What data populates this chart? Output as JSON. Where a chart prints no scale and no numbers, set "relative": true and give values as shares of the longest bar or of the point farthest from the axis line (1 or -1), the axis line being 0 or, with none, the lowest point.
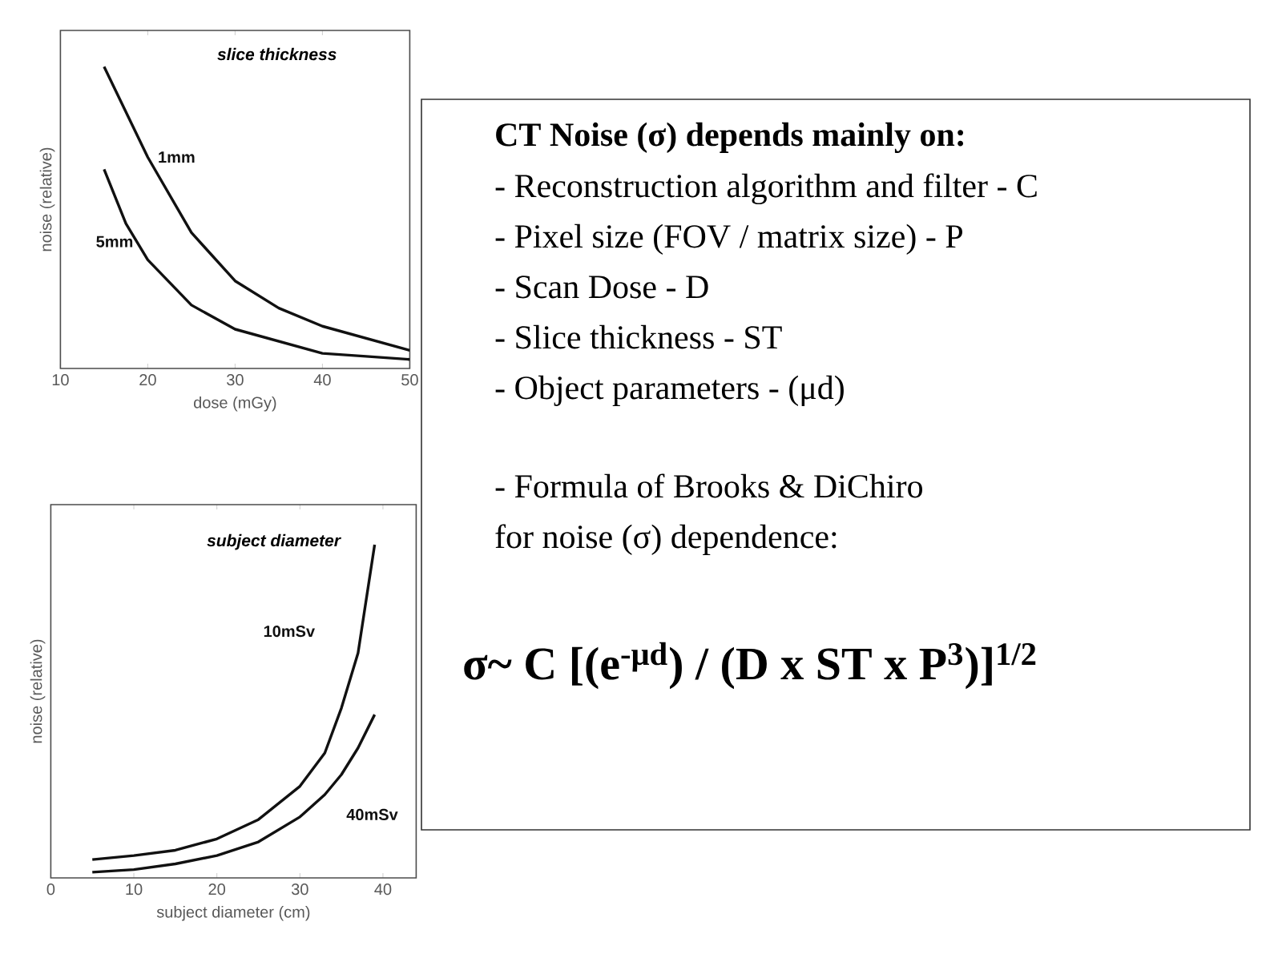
{
  "chart_data": [
    {
      "type": "line",
      "title": "slice thickness",
      "xlabel": "dose (mGy)",
      "ylabel": "noise (relative)",
      "relative": true,
      "xlim": [
        10,
        50
      ],
      "xticks": [
        10,
        20,
        30,
        40,
        50
      ],
      "line_style": "solid",
      "marker": "none",
      "x": [
        15,
        17.5,
        20,
        25,
        30,
        35,
        40,
        45,
        50
      ],
      "series": [
        {
          "name": "1mm",
          "color": "#111111",
          "values": [
            1.0,
            0.85,
            0.7,
            0.45,
            0.29,
            0.2,
            0.14,
            0.1,
            0.06
          ]
        },
        {
          "name": "5mm",
          "color": "#111111",
          "values": [
            0.66,
            0.48,
            0.36,
            0.21,
            0.13,
            0.09,
            0.05,
            0.04,
            0.03
          ]
        }
      ]
    },
    {
      "type": "line",
      "title": "subject diameter",
      "xlabel": "subject diameter (cm)",
      "ylabel": "noise (relative)",
      "relative": true,
      "xlim": [
        0,
        44
      ],
      "xticks": [
        0,
        10,
        20,
        30,
        40
      ],
      "line_style": "solid",
      "marker": "none",
      "x": [
        5,
        10,
        15,
        20,
        25,
        30,
        33,
        35,
        37,
        39
      ],
      "series": [
        {
          "name": "10mSv",
          "color": "#111111",
          "values": [
            0.055,
            0.067,
            0.083,
            0.117,
            0.175,
            0.275,
            0.375,
            0.51,
            0.675,
            1.0
          ]
        },
        {
          "name": "40mSv",
          "color": "#111111",
          "values": [
            0.017,
            0.025,
            0.042,
            0.067,
            0.108,
            0.183,
            0.25,
            0.31,
            0.39,
            0.49
          ]
        }
      ]
    },
    {
      "type": "other",
      "title": "CT Noise (σ) depends mainly on:",
      "annotations": [
        "- Reconstruction algorithm and filter - C",
        "- Pixel size (FOV / matrix size) - P",
        "- Scan Dose - D",
        "- Slice thickness - ST",
        "- Object parameters - (μd)",
        "- Formula of Brooks & DiChiro",
        "for noise (σ) dependence:",
        "σ~ C [(e$^{-μd}$) / (D x ST x P$^{3}$)]$^{1/2}$"
      ]
    }
  ]
}
